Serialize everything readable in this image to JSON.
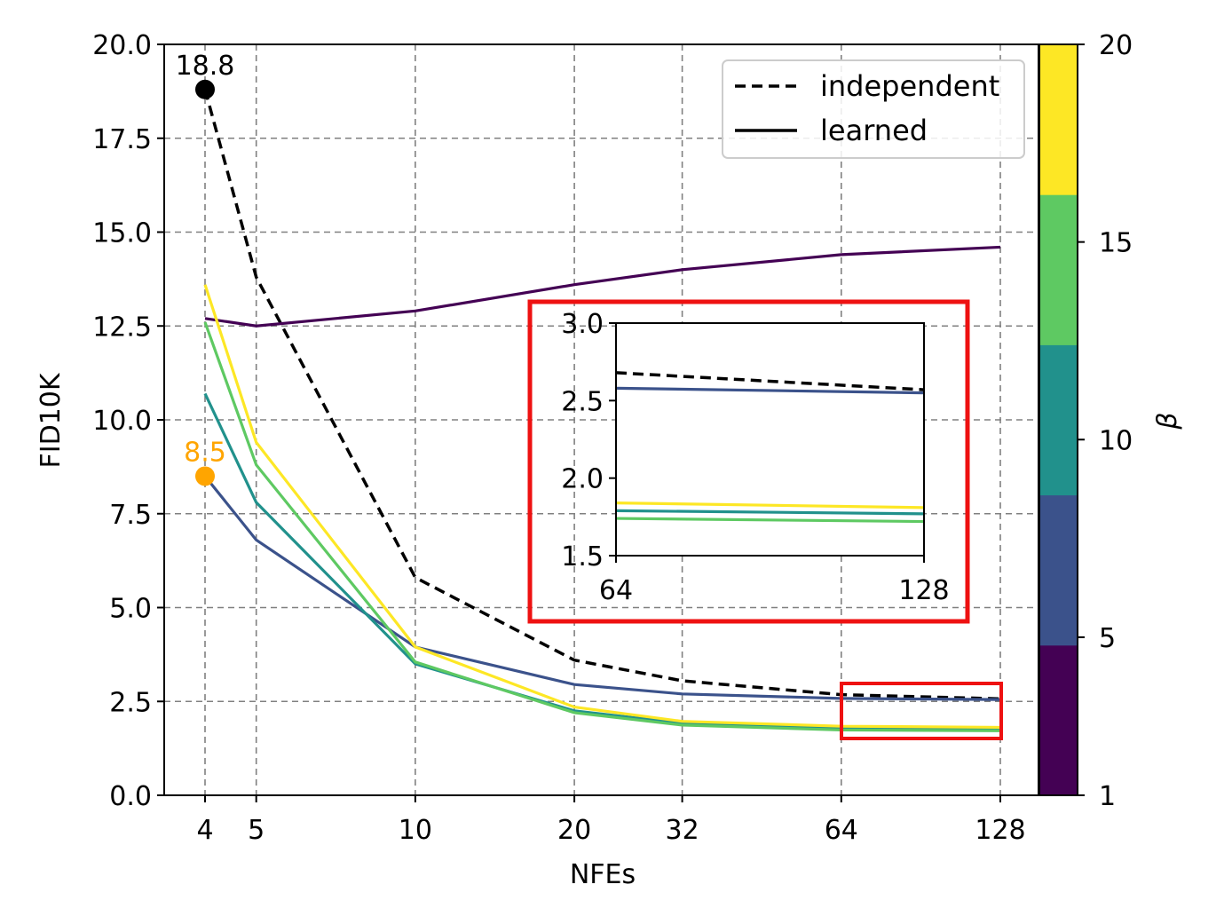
{
  "chart_data": {
    "type": "line",
    "xlabel": "NFEs",
    "ylabel": "FID10K",
    "x_categories": [
      "4",
      "5",
      "10",
      "20",
      "32",
      "64",
      "128"
    ],
    "ylim": [
      0.0,
      20.0
    ],
    "yticks": [
      "0.0",
      "2.5",
      "5.0",
      "7.5",
      "10.0",
      "12.5",
      "15.0",
      "17.5",
      "20.0"
    ],
    "grid": true,
    "legend": {
      "placement": "top-right",
      "entries": [
        {
          "label": "independent",
          "style": "dashed"
        },
        {
          "label": "learned",
          "style": "solid"
        }
      ]
    },
    "series": [
      {
        "name": "independent",
        "style": "dashed",
        "color": "#000000",
        "values": [
          18.8,
          13.8,
          5.8,
          3.6,
          3.05,
          2.68,
          2.57
        ]
      },
      {
        "name": "learned β=1",
        "style": "solid",
        "color": "#440154",
        "values": [
          12.7,
          12.5,
          12.9,
          13.6,
          14.0,
          14.4,
          14.6
        ]
      },
      {
        "name": "learned β=5",
        "style": "solid",
        "color": "#3b528b",
        "values": [
          8.5,
          6.8,
          3.95,
          2.95,
          2.7,
          2.58,
          2.55
        ]
      },
      {
        "name": "learned β=10",
        "style": "solid",
        "color": "#21918c",
        "values": [
          10.7,
          7.8,
          3.5,
          2.25,
          1.92,
          1.79,
          1.77
        ]
      },
      {
        "name": "learned β=15",
        "style": "solid",
        "color": "#5ec962",
        "values": [
          12.6,
          8.8,
          3.55,
          2.2,
          1.87,
          1.74,
          1.72
        ]
      },
      {
        "name": "learned β=20",
        "style": "solid",
        "color": "#fde725",
        "values": [
          13.6,
          9.4,
          3.95,
          2.35,
          1.97,
          1.84,
          1.81
        ]
      }
    ],
    "annotations": [
      {
        "text": "18.8",
        "x": "4",
        "y": 18.8,
        "color": "#000000"
      },
      {
        "text": "8.5",
        "x": "4",
        "y": 8.5,
        "color": "#ffa500"
      }
    ],
    "inset": {
      "x_categories": [
        "64",
        "128"
      ],
      "ylim": [
        1.5,
        3.0
      ],
      "yticks": [
        "1.5",
        "2.0",
        "2.5",
        "3.0"
      ],
      "highlight_color": "#ee1111"
    },
    "colorbar": {
      "label": "β",
      "tick_labels": [
        "1",
        "5",
        "10",
        "15",
        "20"
      ],
      "colors": [
        "#440154",
        "#3b528b",
        "#21918c",
        "#5ec962",
        "#fde725"
      ]
    }
  }
}
